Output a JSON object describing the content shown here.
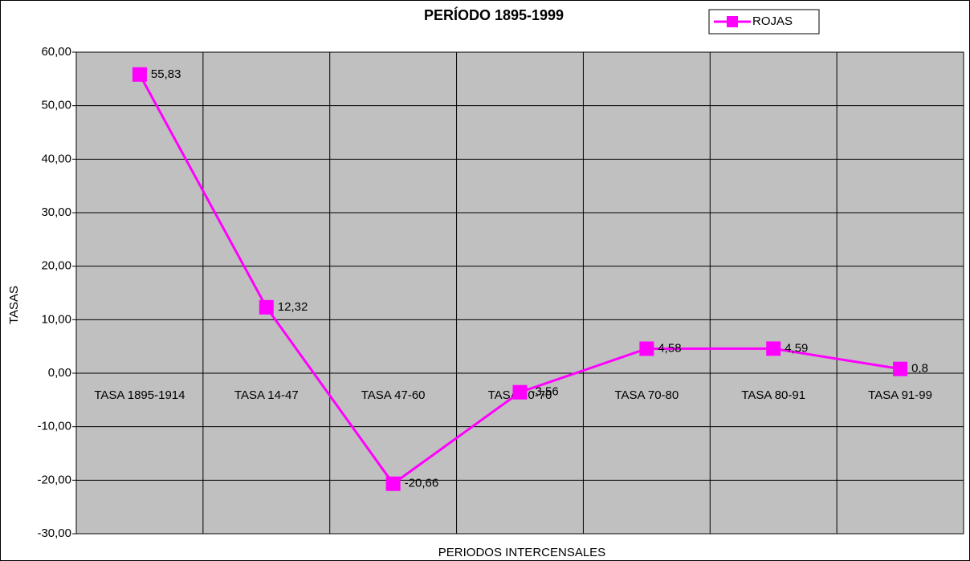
{
  "chart_data": {
    "type": "line",
    "title": "PERÍODO 1895-1999",
    "x_label": "PERIODOS INTERCENSALES",
    "y_label": "TASAS",
    "categories": [
      "TASA 1895-1914",
      "TASA 14-47",
      "TASA 47-60",
      "TASA 60-70",
      "TASA 70-80",
      "TASA 80-91",
      "TASA 91-99"
    ],
    "series": [
      {
        "name": "ROJAS",
        "color": "#ff00ff",
        "values": [
          55.83,
          12.32,
          -20.66,
          -3.56,
          4.58,
          4.59,
          0.8
        ],
        "value_labels": [
          "55,83",
          "12,32",
          "-20,66",
          "-3,56",
          "4,58",
          "4,59",
          "0,8"
        ]
      }
    ],
    "ylim": [
      -30,
      60
    ],
    "yticks": [
      {
        "value": -30,
        "label": "-30,00"
      },
      {
        "value": -20,
        "label": "-20,00"
      },
      {
        "value": -10,
        "label": "-10,00"
      },
      {
        "value": 0,
        "label": "0,00"
      },
      {
        "value": 10,
        "label": "10,00"
      },
      {
        "value": 20,
        "label": "20,00"
      },
      {
        "value": 30,
        "label": "30,00"
      },
      {
        "value": 40,
        "label": "40,00"
      },
      {
        "value": 50,
        "label": "50,00"
      },
      {
        "value": 60,
        "label": "60,00"
      }
    ],
    "grid": true,
    "legend": "top-right",
    "plot_background": "#c0c0c0"
  }
}
